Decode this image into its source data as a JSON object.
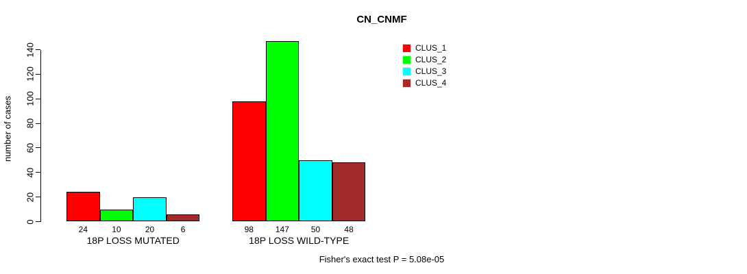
{
  "title": "CN_CNMF",
  "footer": "Fisher's exact test P = 5.08e-05",
  "chart_data": {
    "type": "bar",
    "title": "CN_CNMF",
    "xlabel": "",
    "ylabel": "number of cases",
    "categories": [
      "18P LOSS MUTATED",
      "18P LOSS WILD-TYPE"
    ],
    "series": [
      {
        "name": "CLUS_1",
        "color": "#FF0000",
        "values": [
          24,
          98
        ]
      },
      {
        "name": "CLUS_2",
        "color": "#00FF00",
        "values": [
          10,
          147
        ]
      },
      {
        "name": "CLUS_3",
        "color": "#00FFFF",
        "values": [
          20,
          50
        ]
      },
      {
        "name": "CLUS_4",
        "color": "#A52A2A",
        "values": [
          6,
          48
        ]
      }
    ],
    "bar_labels": [
      [
        24,
        10,
        20,
        6
      ],
      [
        98,
        147,
        50,
        48
      ]
    ],
    "ylim": [
      0,
      140
    ],
    "yticks": [
      0,
      20,
      40,
      60,
      80,
      100,
      120,
      140
    ],
    "grid": false,
    "legend_position": "top-right",
    "annotation": "Fisher's exact test P = 5.08e-05"
  }
}
